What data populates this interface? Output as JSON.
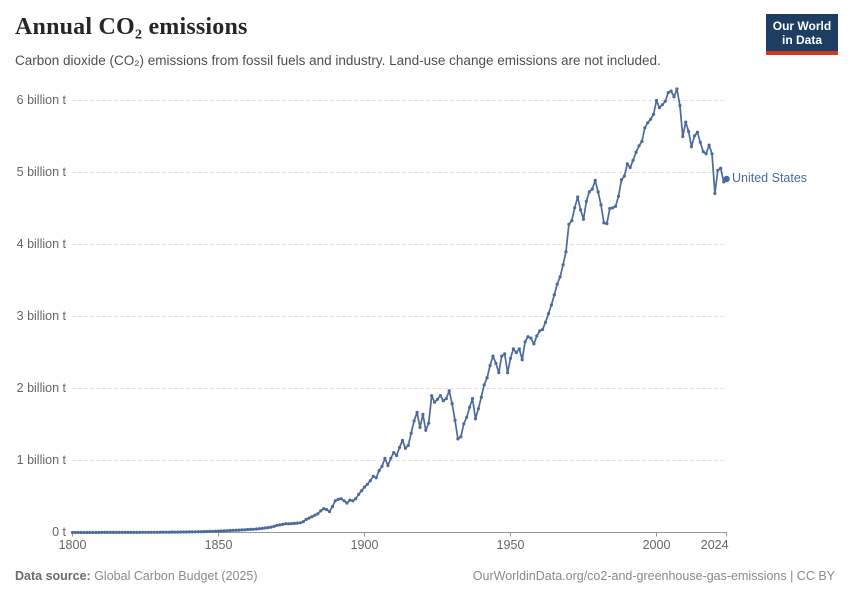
{
  "header": {
    "title": "Annual CO₂ emissions",
    "subtitle": "Carbon dioxide (CO₂) emissions from fossil fuels and industry. Land-use change emissions are not included.",
    "logo": {
      "line1": "Our World",
      "line2": "in Data"
    }
  },
  "footer": {
    "source_label": "Data source:",
    "source_value": " Global Carbon Budget (2025)",
    "link_text": "OurWorldinData.org/co2-and-greenhouse-gas-emissions | CC BY"
  },
  "colors": {
    "line": "#4C6A9C",
    "logo_bg": "#1d3d63",
    "logo_bar": "#d43722",
    "grid": "#dcdcdc",
    "axis": "#999999",
    "tick_text": "#666666"
  },
  "chart_data": {
    "type": "line",
    "title": "Annual CO₂ emissions",
    "xlabel": "",
    "ylabel": "",
    "x_range": [
      1800,
      2024
    ],
    "ylim": [
      0,
      6.2
    ],
    "grid": true,
    "legend_position": "end-of-line-label",
    "yticks": [
      {
        "v": 0,
        "label": "0 t"
      },
      {
        "v": 1,
        "label": "1 billion t"
      },
      {
        "v": 2,
        "label": "2 billion t"
      },
      {
        "v": 3,
        "label": "3 billion t"
      },
      {
        "v": 4,
        "label": "4 billion t"
      },
      {
        "v": 5,
        "label": "5 billion t"
      },
      {
        "v": 6,
        "label": "6 billion t"
      }
    ],
    "xticks": [
      {
        "v": 1800,
        "label": "1800"
      },
      {
        "v": 1850,
        "label": "1850"
      },
      {
        "v": 1900,
        "label": "1900"
      },
      {
        "v": 1950,
        "label": "1950"
      },
      {
        "v": 2000,
        "label": "2000"
      },
      {
        "v": 2024,
        "label": "2024"
      }
    ],
    "series": [
      {
        "name": "United States",
        "unit": "billion t",
        "x_start": 1800,
        "x_end": 2024,
        "values": [
          0.0003,
          0.0003,
          0.0003,
          0.0004,
          0.0004,
          0.0004,
          0.0005,
          0.0005,
          0.0006,
          0.0006,
          0.0007,
          0.0007,
          0.0008,
          0.0009,
          0.0009,
          0.001,
          0.0011,
          0.0012,
          0.0013,
          0.0014,
          0.0015,
          0.0016,
          0.0018,
          0.0019,
          0.0021,
          0.0023,
          0.0025,
          0.0027,
          0.003,
          0.0032,
          0.0035,
          0.0038,
          0.0042,
          0.0045,
          0.0049,
          0.0054,
          0.0059,
          0.0064,
          0.007,
          0.0076,
          0.0083,
          0.009,
          0.0098,
          0.0107,
          0.0116,
          0.0127,
          0.0138,
          0.015,
          0.0164,
          0.0178,
          0.0198,
          0.0212,
          0.0229,
          0.0249,
          0.0275,
          0.0301,
          0.032,
          0.0339,
          0.0358,
          0.038,
          0.041,
          0.043,
          0.045,
          0.049,
          0.053,
          0.057,
          0.062,
          0.068,
          0.075,
          0.085,
          0.1,
          0.105,
          0.112,
          0.122,
          0.121,
          0.123,
          0.126,
          0.131,
          0.135,
          0.15,
          0.18,
          0.2,
          0.22,
          0.24,
          0.26,
          0.3,
          0.33,
          0.32,
          0.29,
          0.36,
          0.44,
          0.46,
          0.47,
          0.44,
          0.41,
          0.45,
          0.44,
          0.47,
          0.53,
          0.58,
          0.63,
          0.67,
          0.72,
          0.78,
          0.76,
          0.86,
          0.92,
          1.03,
          0.93,
          1.03,
          1.11,
          1.07,
          1.18,
          1.28,
          1.17,
          1.21,
          1.38,
          1.55,
          1.67,
          1.46,
          1.64,
          1.42,
          1.52,
          1.9,
          1.81,
          1.85,
          1.9,
          1.83,
          1.86,
          1.97,
          1.79,
          1.56,
          1.3,
          1.33,
          1.51,
          1.6,
          1.74,
          1.86,
          1.58,
          1.72,
          1.88,
          2.05,
          2.15,
          2.32,
          2.45,
          2.35,
          2.22,
          2.45,
          2.48,
          2.22,
          2.42,
          2.55,
          2.5,
          2.55,
          2.4,
          2.65,
          2.72,
          2.7,
          2.62,
          2.73,
          2.8,
          2.82,
          2.92,
          3.04,
          3.16,
          3.3,
          3.45,
          3.55,
          3.72,
          3.9,
          4.28,
          4.33,
          4.51,
          4.66,
          4.48,
          4.35,
          4.6,
          4.73,
          4.77,
          4.89,
          4.73,
          4.55,
          4.3,
          4.29,
          4.5,
          4.51,
          4.53,
          4.67,
          4.9,
          4.95,
          5.12,
          5.07,
          5.17,
          5.28,
          5.37,
          5.43,
          5.62,
          5.69,
          5.74,
          5.81,
          6.0,
          5.9,
          5.94,
          5.99,
          6.11,
          6.13,
          6.05,
          6.16,
          5.93,
          5.5,
          5.7,
          5.57,
          5.36,
          5.51,
          5.56,
          5.42,
          5.29,
          5.26,
          5.38,
          5.26,
          4.71,
          5.03,
          5.06,
          4.87,
          4.91
        ]
      }
    ]
  }
}
